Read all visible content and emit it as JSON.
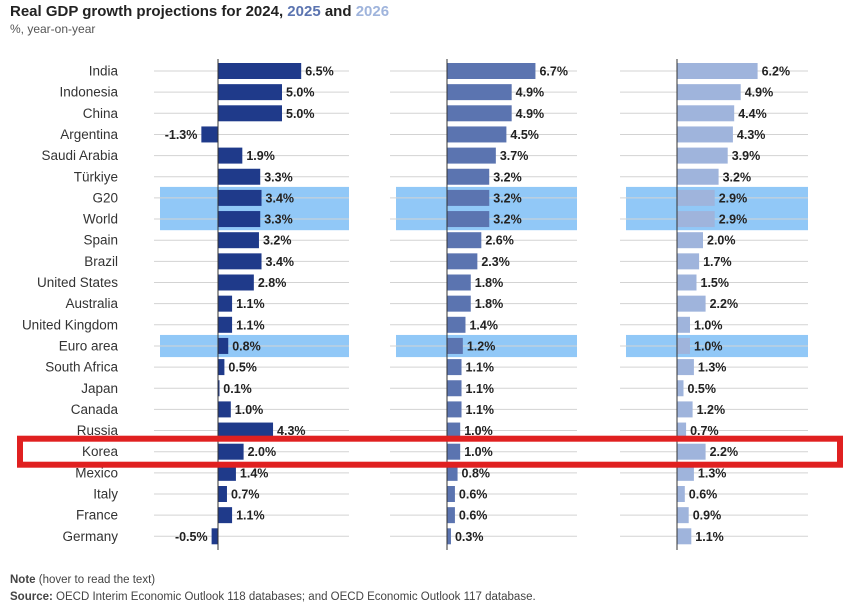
{
  "title": {
    "prefix": "Real GDP growth projections for 2024,",
    "y2025": "2025",
    "and": "and",
    "y2026": "2026"
  },
  "subtitle": "%, year-on-year",
  "colors": {
    "y2024": "#1f3a8a",
    "y2025": "#5b74b0",
    "y2026": "#9fb4dc",
    "highlight_band": "#91c8f7",
    "callout_box": "#e02020"
  },
  "chart_data": {
    "type": "bar",
    "orientation": "horizontal",
    "categories": [
      "India",
      "Indonesia",
      "China",
      "Argentina",
      "Saudi Arabia",
      "Türkiye",
      "G20",
      "World",
      "Spain",
      "Brazil",
      "United States",
      "Australia",
      "United Kingdom",
      "Euro area",
      "South Africa",
      "Japan",
      "Canada",
      "Russia",
      "Korea",
      "Mexico",
      "Italy",
      "France",
      "Germany"
    ],
    "series": [
      {
        "name": "2024",
        "values": [
          6.5,
          5.0,
          5.0,
          -1.3,
          1.9,
          3.3,
          3.4,
          3.3,
          3.2,
          3.4,
          2.8,
          1.1,
          1.1,
          0.8,
          0.5,
          0.1,
          1.0,
          4.3,
          2.0,
          1.4,
          0.7,
          1.1,
          -0.5
        ],
        "labels": [
          "6.5%",
          "5.0%",
          "5.0%",
          "-1.3%",
          "1.9%",
          "3.3%",
          "3.4%",
          "3.3%",
          "3.2%",
          "3.4%",
          "2.8%",
          "1.1%",
          "1.1%",
          "0.8%",
          "0.5%",
          "0.1%",
          "1.0%",
          "4.3%",
          "2.0%",
          "1.4%",
          "0.7%",
          "1.1%",
          "-0.5%"
        ]
      },
      {
        "name": "2025",
        "values": [
          6.7,
          4.9,
          4.9,
          4.5,
          3.7,
          3.2,
          3.2,
          3.2,
          2.6,
          2.3,
          1.8,
          1.8,
          1.4,
          1.2,
          1.1,
          1.1,
          1.1,
          1.0,
          1.0,
          0.8,
          0.6,
          0.6,
          0.3
        ],
        "labels": [
          "6.7%",
          "4.9%",
          "4.9%",
          "4.5%",
          "3.7%",
          "3.2%",
          "3.2%",
          "3.2%",
          "2.6%",
          "2.3%",
          "1.8%",
          "1.8%",
          "1.4%",
          "1.2%",
          "1.1%",
          "1.1%",
          "1.1%",
          "1.0%",
          "1.0%",
          "0.8%",
          "0.6%",
          "0.6%",
          "0.3%"
        ]
      },
      {
        "name": "2026",
        "values": [
          6.2,
          4.9,
          4.4,
          4.3,
          3.9,
          3.2,
          2.9,
          2.9,
          2.0,
          1.7,
          1.5,
          2.2,
          1.0,
          1.0,
          1.3,
          0.5,
          1.2,
          0.7,
          2.2,
          1.3,
          0.6,
          0.9,
          1.1
        ],
        "labels": [
          "6.2%",
          "4.9%",
          "4.4%",
          "4.3%",
          "3.9%",
          "3.2%",
          "2.9%",
          "2.9%",
          "2.0%",
          "1.7%",
          "1.5%",
          "2.2%",
          "1.0%",
          "1.0%",
          "1.3%",
          "0.5%",
          "1.2%",
          "0.7%",
          "2.2%",
          "1.3%",
          "0.6%",
          "0.9%",
          "1.1%"
        ]
      }
    ],
    "highlighted_categories": [
      "G20",
      "World",
      "Euro area"
    ],
    "callout_category": "Korea",
    "unit": "%"
  },
  "footer": {
    "note_label": "Note",
    "note_text": "(hover to read the text)",
    "source_label": "Source:",
    "source_text": "OECD Interim Economic Outlook 118 databases; and OECD Economic Outlook 117 database."
  }
}
